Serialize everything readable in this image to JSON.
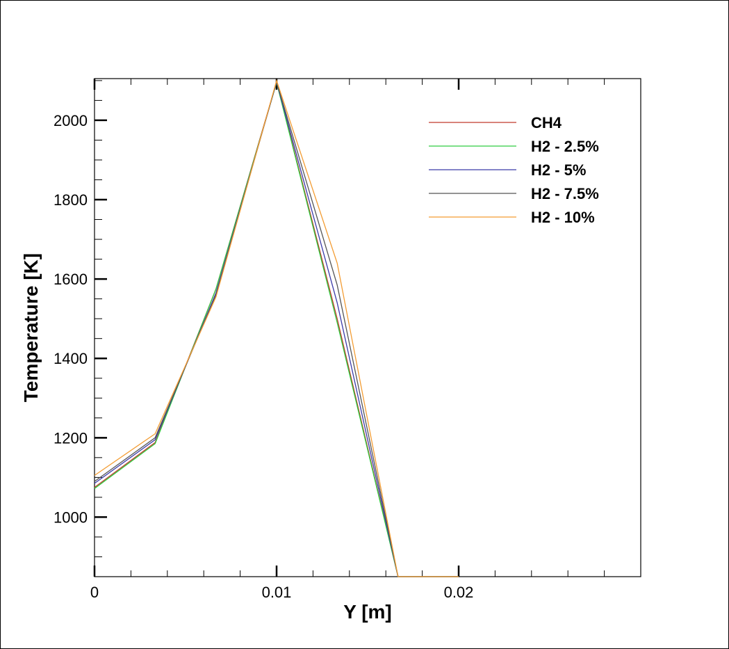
{
  "chart_data": {
    "type": "line",
    "xlabel": "Y [m]",
    "ylabel": "Temperature [K]",
    "xlim": [
      0,
      0.03
    ],
    "ylim": [
      850,
      2105
    ],
    "x_ticks": [
      0,
      0.01,
      0.02
    ],
    "x_tick_labels": [
      "0",
      "0.01",
      "0.02"
    ],
    "x_minor_step": 0.002,
    "y_ticks": [
      1000,
      1200,
      1400,
      1600,
      1800,
      2000
    ],
    "y_tick_labels": [
      "1000",
      "1200",
      "1400",
      "1600",
      "1800",
      "2000"
    ],
    "y_minor_step": 50,
    "legend_position": "top-right",
    "series": [
      {
        "name": "CH4",
        "color": "#c0392b",
        "x": [
          0,
          0.00333,
          0.00667,
          0.01,
          0.01333,
          0.01667,
          0.02
        ],
        "y": [
          1075,
          1188,
          1575,
          2097,
          1500,
          850,
          850
        ]
      },
      {
        "name": "H2 - 2.5%",
        "color": "#2ecc40",
        "x": [
          0,
          0.00333,
          0.00667,
          0.01,
          0.01333,
          0.01667,
          0.02
        ],
        "y": [
          1072,
          1185,
          1575,
          2095,
          1490,
          850,
          850
        ]
      },
      {
        "name": "H2 - 5%",
        "color": "#3a3aa8",
        "x": [
          0,
          0.00333,
          0.00667,
          0.01,
          0.01333,
          0.01667,
          0.02
        ],
        "y": [
          1085,
          1195,
          1565,
          2096,
          1540,
          850,
          850
        ]
      },
      {
        "name": "H2 - 7.5%",
        "color": "#555555",
        "x": [
          0,
          0.00333,
          0.00667,
          0.01,
          0.01333,
          0.01667,
          0.02
        ],
        "y": [
          1090,
          1200,
          1560,
          2097,
          1585,
          850,
          850
        ]
      },
      {
        "name": "H2 - 10%",
        "color": "#f39c32",
        "x": [
          0,
          0.00333,
          0.00667,
          0.01,
          0.01333,
          0.01667,
          0.02
        ],
        "y": [
          1105,
          1210,
          1555,
          2100,
          1640,
          850,
          850
        ]
      }
    ]
  }
}
